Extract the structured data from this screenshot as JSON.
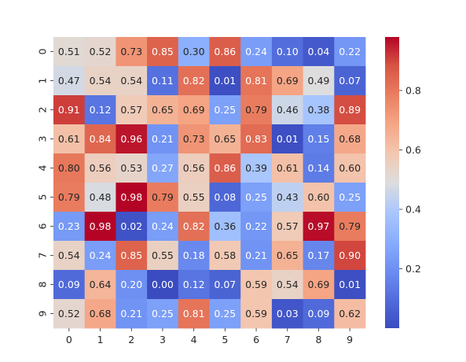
{
  "chart_data": {
    "type": "heatmap",
    "title": "",
    "xlabel": "",
    "ylabel": "",
    "x_categories": [
      "0",
      "1",
      "2",
      "3",
      "4",
      "5",
      "6",
      "7",
      "8",
      "9"
    ],
    "y_categories": [
      "0",
      "1",
      "2",
      "3",
      "4",
      "5",
      "6",
      "7",
      "8",
      "9"
    ],
    "values": [
      [
        0.51,
        0.52,
        0.73,
        0.85,
        0.3,
        0.86,
        0.24,
        0.1,
        0.04,
        0.22
      ],
      [
        0.47,
        0.54,
        0.54,
        0.11,
        0.82,
        0.01,
        0.81,
        0.69,
        0.49,
        0.07
      ],
      [
        0.91,
        0.12,
        0.57,
        0.65,
        0.69,
        0.25,
        0.79,
        0.46,
        0.38,
        0.89
      ],
      [
        0.61,
        0.84,
        0.96,
        0.21,
        0.73,
        0.65,
        0.83,
        0.01,
        0.15,
        0.68
      ],
      [
        0.8,
        0.56,
        0.53,
        0.27,
        0.56,
        0.86,
        0.39,
        0.61,
        0.14,
        0.6
      ],
      [
        0.79,
        0.48,
        0.98,
        0.79,
        0.55,
        0.08,
        0.25,
        0.43,
        0.6,
        0.25
      ],
      [
        0.23,
        0.98,
        0.02,
        0.24,
        0.82,
        0.36,
        0.22,
        0.57,
        0.97,
        0.79
      ],
      [
        0.54,
        0.24,
        0.85,
        0.55,
        0.18,
        0.58,
        0.21,
        0.65,
        0.17,
        0.9
      ],
      [
        0.09,
        0.64,
        0.2,
        0.0,
        0.12,
        0.07,
        0.59,
        0.54,
        0.69,
        0.01
      ],
      [
        0.52,
        0.68,
        0.21,
        0.25,
        0.81,
        0.25,
        0.59,
        0.03,
        0.09,
        0.62
      ]
    ],
    "value_format": "0.00",
    "colormap": "coolwarm",
    "colorbar": {
      "range": [
        0.0,
        0.98
      ],
      "ticks": [
        0.2,
        0.4,
        0.6,
        0.8
      ],
      "tick_labels": [
        "0.2",
        "0.4",
        "0.6",
        "0.8"
      ]
    },
    "grid": false
  }
}
